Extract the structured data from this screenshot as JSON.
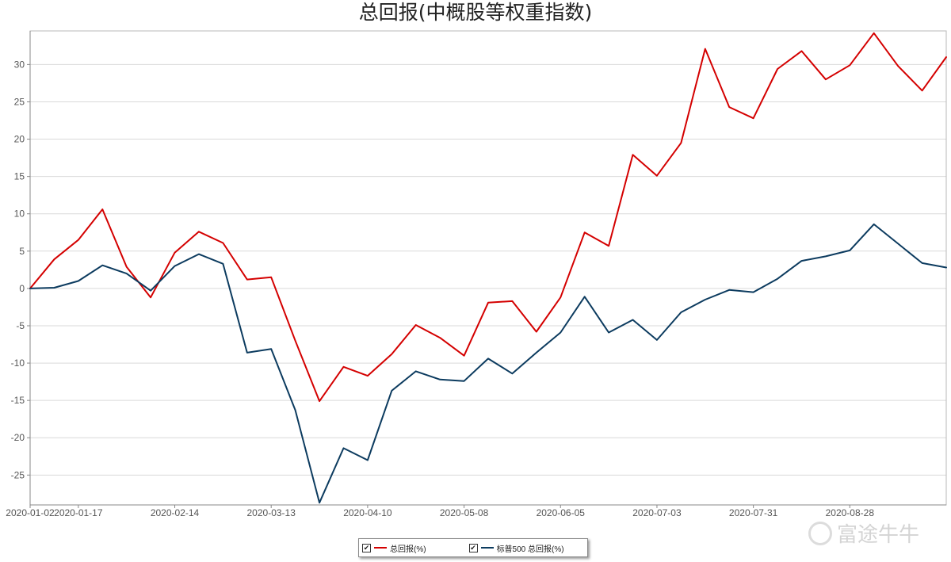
{
  "chart_data": {
    "type": "line",
    "title": "总回报(中概股等权重指数)",
    "x": [
      "2020-01-02",
      "2020-01-10",
      "2020-01-17",
      "2020-01-24",
      "2020-01-31",
      "2020-02-07",
      "2020-02-14",
      "2020-02-21",
      "2020-02-28",
      "2020-03-06",
      "2020-03-13",
      "2020-03-20",
      "2020-03-27",
      "2020-04-03",
      "2020-04-10",
      "2020-04-17",
      "2020-04-24",
      "2020-05-01",
      "2020-05-08",
      "2020-05-15",
      "2020-05-22",
      "2020-05-29",
      "2020-06-05",
      "2020-06-12",
      "2020-06-19",
      "2020-06-26",
      "2020-07-03",
      "2020-07-10",
      "2020-07-17",
      "2020-07-24",
      "2020-07-31",
      "2020-08-07",
      "2020-08-14",
      "2020-08-21",
      "2020-08-28",
      "2020-09-04",
      "2020-09-11",
      "2020-09-18",
      "2020-09-25"
    ],
    "x_tick_labels": [
      "2020-01-02",
      "2020-01-17",
      "2020-02-14",
      "2020-03-13",
      "2020-04-10",
      "2020-05-08",
      "2020-06-05",
      "2020-07-03",
      "2020-07-31",
      "2020-08-28"
    ],
    "series": [
      {
        "name": "总回报(%)",
        "color": "#d40000",
        "values": [
          0,
          3.9,
          6.5,
          10.6,
          2.9,
          -1.2,
          4.8,
          7.6,
          6.1,
          1.2,
          1.5,
          -7,
          -15.1,
          -10.5,
          -11.7,
          -8.8,
          -4.9,
          -6.6,
          -9.0,
          -1.9,
          -1.7,
          -5.8,
          -1.2,
          7.5,
          5.7,
          17.9,
          15.1,
          19.5,
          32.1,
          24.3,
          22.8,
          29.4,
          31.8,
          28.0,
          29.9,
          34.2,
          29.8,
          26.5,
          31.0
        ]
      },
      {
        "name": "标普500 总回报(%)",
        "color": "#0c3b5f",
        "values": [
          0,
          0.1,
          1.0,
          3.1,
          2.0,
          -0.3,
          3.0,
          4.6,
          3.3,
          -8.6,
          -8.1,
          -16.3,
          -28.7,
          -21.4,
          -23.0,
          -13.7,
          -11.1,
          -12.2,
          -12.4,
          -9.4,
          -11.4,
          -8.6,
          -5.9,
          -1.1,
          -5.9,
          -4.2,
          -6.9,
          -3.2,
          -1.5,
          -0.2,
          -0.5,
          1.3,
          3.7,
          4.3,
          5.1,
          8.6,
          6.0,
          3.4,
          2.8
        ]
      }
    ],
    "y_ticks": [
      30,
      25,
      20,
      15,
      10,
      5,
      0,
      -5,
      -10,
      -15,
      -20,
      -25
    ],
    "ylim": [
      -29,
      34.5
    ],
    "grid": true,
    "legend_position": "bottom-center"
  },
  "watermark": {
    "text": "富途牛牛"
  },
  "legend": {
    "check_mark": "✔"
  }
}
